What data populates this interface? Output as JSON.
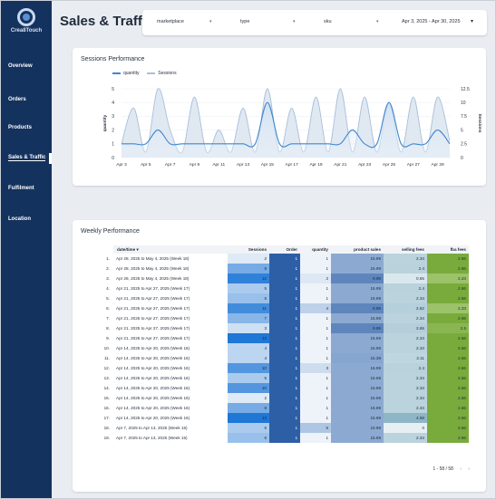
{
  "brand": {
    "name": "Crea8Touch"
  },
  "sidebar": {
    "items": [
      {
        "label": "Overview"
      },
      {
        "label": "Orders"
      },
      {
        "label": "Products"
      },
      {
        "label": "Sales & Traffic"
      },
      {
        "label": "Fulfilment"
      },
      {
        "label": "Location"
      }
    ],
    "active_index": 3
  },
  "header": {
    "title": "Sales & Traffic",
    "filters": [
      {
        "label": "marketplace"
      },
      {
        "label": "type"
      },
      {
        "label": "sku"
      }
    ],
    "date_range": "Apr 3, 2025 - Apr 30, 2025"
  },
  "sessions_card": {
    "title": "Sessions Performance"
  },
  "chart_data": {
    "type": "area",
    "xlabel": "",
    "ylabel": "quantity",
    "y2label": "Sessions",
    "x_ticks": [
      "Apr 3",
      "Apr 5",
      "Apr 7",
      "Apr 9",
      "Apr 11",
      "Apr 13",
      "Apr 15",
      "Apr 17",
      "Apr 19",
      "Apr 21",
      "Apr 23",
      "Apr 25",
      "Apr 27",
      "Apr 29"
    ],
    "x": [
      "Apr 3",
      "Apr 4",
      "Apr 5",
      "Apr 6",
      "Apr 7",
      "Apr 8",
      "Apr 9",
      "Apr 10",
      "Apr 11",
      "Apr 12",
      "Apr 13",
      "Apr 14",
      "Apr 15",
      "Apr 16",
      "Apr 17",
      "Apr 18",
      "Apr 19",
      "Apr 20",
      "Apr 21",
      "Apr 22",
      "Apr 23",
      "Apr 24",
      "Apr 25",
      "Apr 26",
      "Apr 27",
      "Apr 28",
      "Apr 29",
      "Apr 30"
    ],
    "ylim": [
      0,
      5
    ],
    "y_ticks": [
      0,
      1,
      2,
      3,
      4,
      5
    ],
    "y2lim": [
      0,
      12.5
    ],
    "y2_ticks": [
      0,
      2.5,
      5,
      7.5,
      10,
      12.5
    ],
    "legend_position": "top-left",
    "series": [
      {
        "name": "quantity",
        "axis": "left",
        "color": "#3f86cf",
        "values": [
          1,
          1,
          1,
          2,
          1,
          1,
          1,
          1,
          1,
          1,
          1,
          1,
          4,
          1,
          1,
          1,
          1,
          1,
          1,
          2,
          1,
          1,
          4,
          1,
          1,
          1,
          2,
          1
        ]
      },
      {
        "name": "Sessions",
        "axis": "right",
        "color": "#a9bfda",
        "values": [
          2.5,
          9,
          1,
          12.5,
          5,
          1,
          11,
          1,
          5,
          1,
          9,
          1,
          12.5,
          1,
          9,
          1,
          11,
          1,
          12.5,
          1,
          11,
          1,
          10,
          1,
          11,
          1,
          11,
          3
        ]
      }
    ]
  },
  "weekly_card": {
    "title": "Weekly Performance"
  },
  "table": {
    "columns": [
      "date/time",
      "Sessions",
      "Order",
      "quantity",
      "product sales",
      "selling fees",
      "fba fees"
    ],
    "rows": [
      [
        "1.",
        "Apr 28, 2025 to May 4, 2025 (Week 18)",
        "2",
        "1",
        "1",
        "15.99",
        "2.34",
        "2.66"
      ],
      [
        "2.",
        "Apr 28, 2025 to May 4, 2025 (Week 18)",
        "8",
        "1",
        "1",
        "15.99",
        "2.4",
        "2.66"
      ],
      [
        "3.",
        "Apr 28, 2025 to May 4, 2025 (Week 18)",
        "12",
        "1",
        "2",
        "9.99",
        "0.65",
        "2.33"
      ],
      [
        "4.",
        "Apr 21, 2025 to Apr 27, 2025 (Week 17)",
        "5",
        "1",
        "1",
        "15.99",
        "2.4",
        "2.66"
      ],
      [
        "5.",
        "Apr 21, 2025 to Apr 27, 2025 (Week 17)",
        "6",
        "1",
        "1",
        "15.99",
        "2.34",
        "2.66"
      ],
      [
        "6.",
        "Apr 21, 2025 to Apr 27, 2025 (Week 17)",
        "11",
        "1",
        "4",
        "9.99",
        "2.62",
        "2.33"
      ],
      [
        "7.",
        "Apr 21, 2025 to Apr 27, 2025 (Week 17)",
        "7",
        "1",
        "1",
        "15.99",
        "2.34",
        "2.66"
      ],
      [
        "8.",
        "Apr 21, 2025 to Apr 27, 2025 (Week 17)",
        "3",
        "1",
        "1",
        "9.99",
        "2.65",
        "2.5"
      ],
      [
        "9.",
        "Apr 21, 2025 to Apr 27, 2025 (Week 17)",
        "13",
        "1",
        "1",
        "15.99",
        "2.34",
        "2.66"
      ],
      [
        "10.",
        "Apr 14, 2025 to Apr 20, 2025 (Week 16)",
        "4",
        "1",
        "1",
        "15.99",
        "2.34",
        "2.66"
      ],
      [
        "11.",
        "Apr 14, 2025 to Apr 20, 2025 (Week 16)",
        "4",
        "1",
        "1",
        "15.39",
        "2.11",
        "2.66"
      ],
      [
        "12.",
        "Apr 14, 2025 to Apr 20, 2025 (Week 16)",
        "10",
        "1",
        "3",
        "15.99",
        "2.4",
        "2.66"
      ],
      [
        "13.",
        "Apr 14, 2025 to Apr 20, 2025 (Week 16)",
        "5",
        "1",
        "1",
        "15.99",
        "2.34",
        "2.66"
      ],
      [
        "14.",
        "Apr 14, 2025 to Apr 20, 2025 (Week 16)",
        "10",
        "1",
        "1",
        "15.99",
        "2.34",
        "2.66"
      ],
      [
        "15.",
        "Apr 14, 2025 to Apr 20, 2025 (Week 16)",
        "2",
        "1",
        "1",
        "15.99",
        "2.34",
        "2.66"
      ],
      [
        "16.",
        "Apr 14, 2025 to Apr 20, 2025 (Week 16)",
        "8",
        "1",
        "1",
        "15.99",
        "2.34",
        "2.66"
      ],
      [
        "17.",
        "Apr 14, 2025 to Apr 20, 2025 (Week 16)",
        "13",
        "1",
        "1",
        "15.99",
        "4.68",
        "2.66"
      ],
      [
        "18.",
        "Apr 7, 2025 to Apr 13, 2025 (Week 15)",
        "5",
        "1",
        "5",
        "15.99",
        "0",
        "2.66"
      ],
      [
        "19.",
        "Apr 7, 2025 to Apr 13, 2025 (Week 15)",
        "6",
        "1",
        "1",
        "15.99",
        "2.34",
        "2.66"
      ]
    ],
    "pager": "1 - 58 / 58",
    "colors": {
      "sessions_scale": [
        "#dfeaf7",
        "#1f77d6"
      ],
      "order": "#2d5fa6",
      "quantity_scale": [
        "#eef3f9",
        "#aec6e3"
      ],
      "product_sales_scale": [
        "#aac2df",
        "#5e86bd"
      ],
      "selling_fees_scale": [
        "#e6f0f3",
        "#8eb6c6"
      ],
      "fba_fees_scale": [
        "#9cc26a",
        "#79ab3c"
      ]
    }
  }
}
